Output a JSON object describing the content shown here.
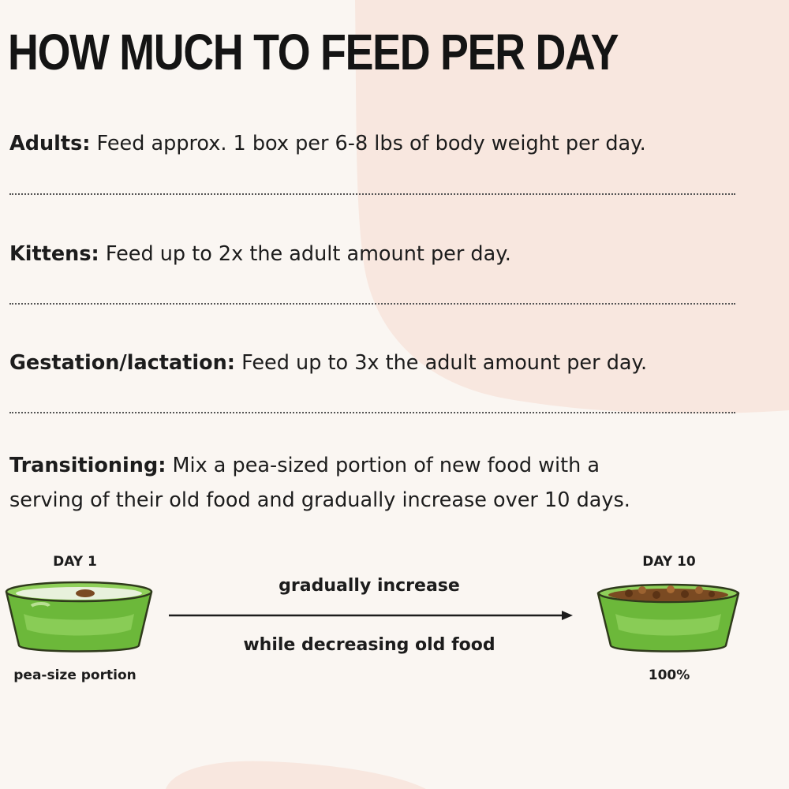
{
  "title": "HOW MUCH TO FEED PER DAY",
  "sections": [
    {
      "label": "Adults:",
      "text": " Feed approx. 1 box per 6-8 lbs of body weight per day."
    },
    {
      "label": "Kittens:",
      "text": " Feed up to 2x the adult amount per day."
    },
    {
      "label": "Gestation/lactation:",
      "text": " Feed up to 3x the adult amount per day."
    },
    {
      "label": "Transitioning:",
      "line1": " Mix a pea-sized portion of new food with a",
      "line2": "serving of their old food and gradually increase over 10 days."
    }
  ],
  "transition": {
    "start": {
      "day_label": "DAY 1",
      "caption": "pea-size portion"
    },
    "end": {
      "day_label": "DAY 10",
      "caption": "100%"
    },
    "arrow_top": "gradually increase",
    "arrow_bottom": "while decreasing old food"
  },
  "icons": [
    "food-bowl-icon",
    "arrow-right-icon"
  ],
  "colors": {
    "background": "#faf6f2",
    "blob": "#f7e6de",
    "bowl_green": "#7cc646",
    "kibble": "#7a4a22",
    "text": "#1c1c1c"
  }
}
